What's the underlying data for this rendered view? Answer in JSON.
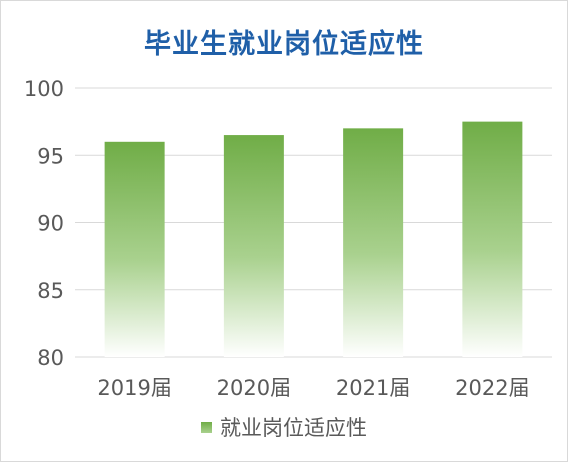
{
  "chart_data": {
    "type": "bar",
    "title": "毕业生就业岗位适应性",
    "xlabel": "",
    "ylabel": "",
    "categories": [
      "2019届",
      "2020届",
      "2021届",
      "2022届"
    ],
    "series": [
      {
        "name": "就业岗位适应性",
        "values": [
          96.0,
          96.5,
          97.0,
          97.5
        ]
      }
    ],
    "ylim": [
      80,
      100
    ],
    "yticks": [
      "80",
      "85",
      "90",
      "95",
      "100"
    ],
    "grid": true,
    "legend_position": "bottom",
    "colors": {
      "bar_top": "#70ad47",
      "bar_mid": "#a9d18e",
      "bar_bottom": "#ffffff",
      "title": "#1f5fa8",
      "grid": "#d9d9d9",
      "text": "#595959"
    }
  }
}
